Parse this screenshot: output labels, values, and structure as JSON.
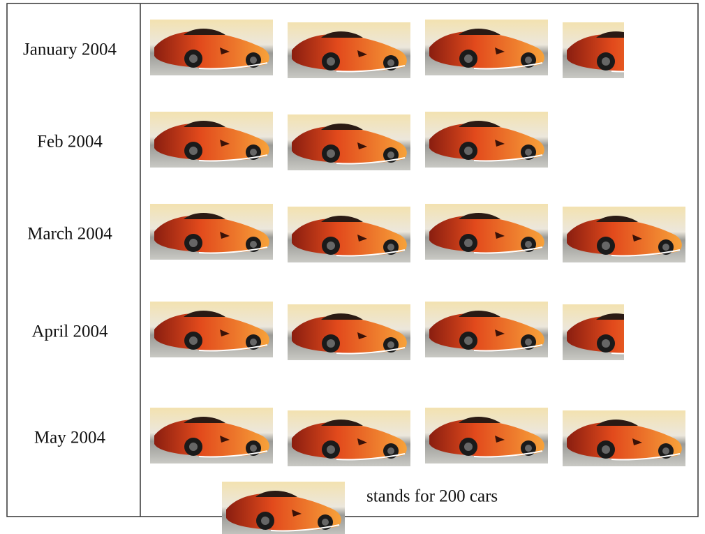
{
  "chart_data": {
    "type": "pictograph",
    "categories": [
      "January 2004",
      "Feb 2004",
      "March 2004",
      "April 2004",
      "May 2004"
    ],
    "values": [
      700,
      600,
      800,
      700,
      800
    ],
    "legend": {
      "value": 200,
      "label": "stands for 200 cars"
    }
  }
}
